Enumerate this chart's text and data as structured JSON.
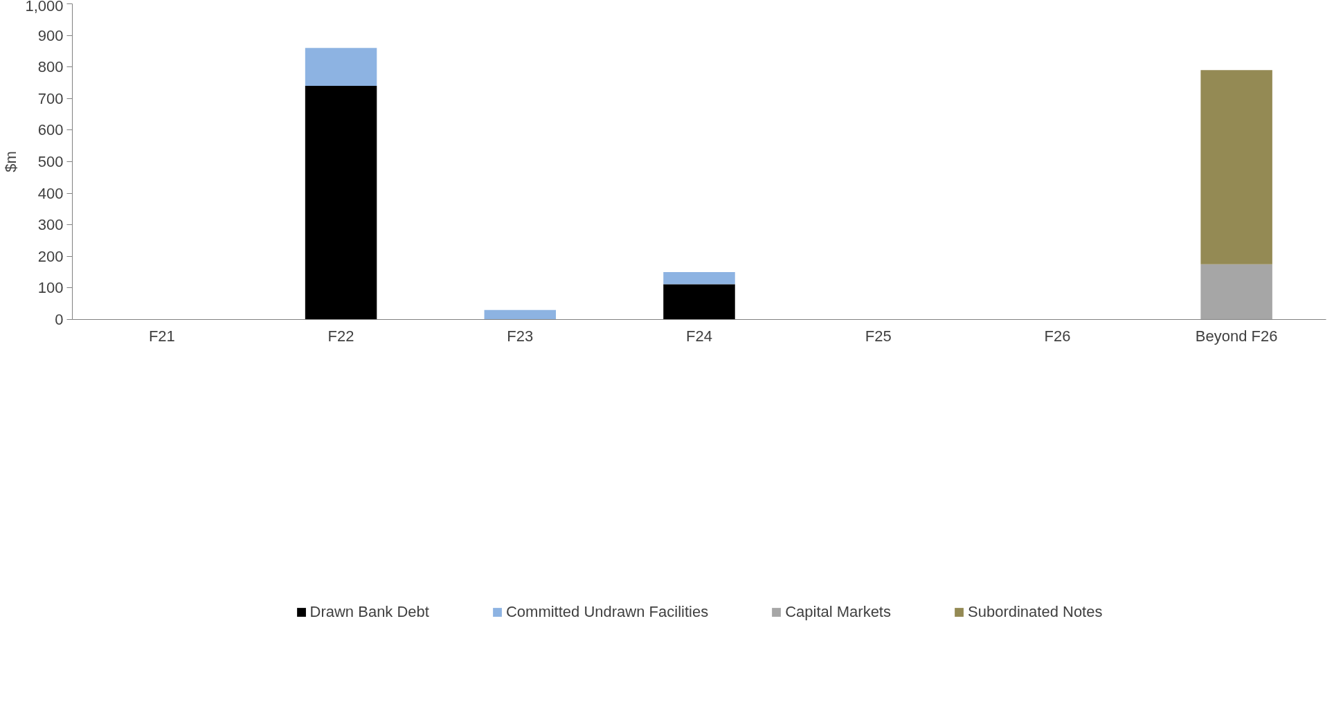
{
  "chart_data": {
    "type": "bar",
    "stacked": true,
    "ylabel": "$m",
    "categories": [
      "F21",
      "F22",
      "F23",
      "F24",
      "F25",
      "F26",
      "Beyond F26"
    ],
    "series": [
      {
        "name": "Drawn Bank Debt",
        "color": "#000000",
        "values": [
          0,
          740,
          0,
          112,
          0,
          0,
          0
        ]
      },
      {
        "name": "Committed Undrawn Facilities",
        "color": "#8db3e2",
        "values": [
          0,
          120,
          30,
          38,
          0,
          0,
          0
        ]
      },
      {
        "name": "Capital Markets",
        "color": "#a6a6a6",
        "values": [
          0,
          0,
          0,
          0,
          0,
          0,
          175
        ]
      },
      {
        "name": "Subordinated Notes",
        "color": "#948a54",
        "values": [
          0,
          0,
          0,
          0,
          0,
          0,
          615
        ]
      }
    ],
    "ylim": [
      0,
      1000
    ],
    "yticks": [
      0,
      100,
      200,
      300,
      400,
      500,
      600,
      700,
      800,
      900,
      {
        "value": 1000,
        "label": "1,000"
      }
    ],
    "grid": false,
    "legend": "bottom"
  }
}
